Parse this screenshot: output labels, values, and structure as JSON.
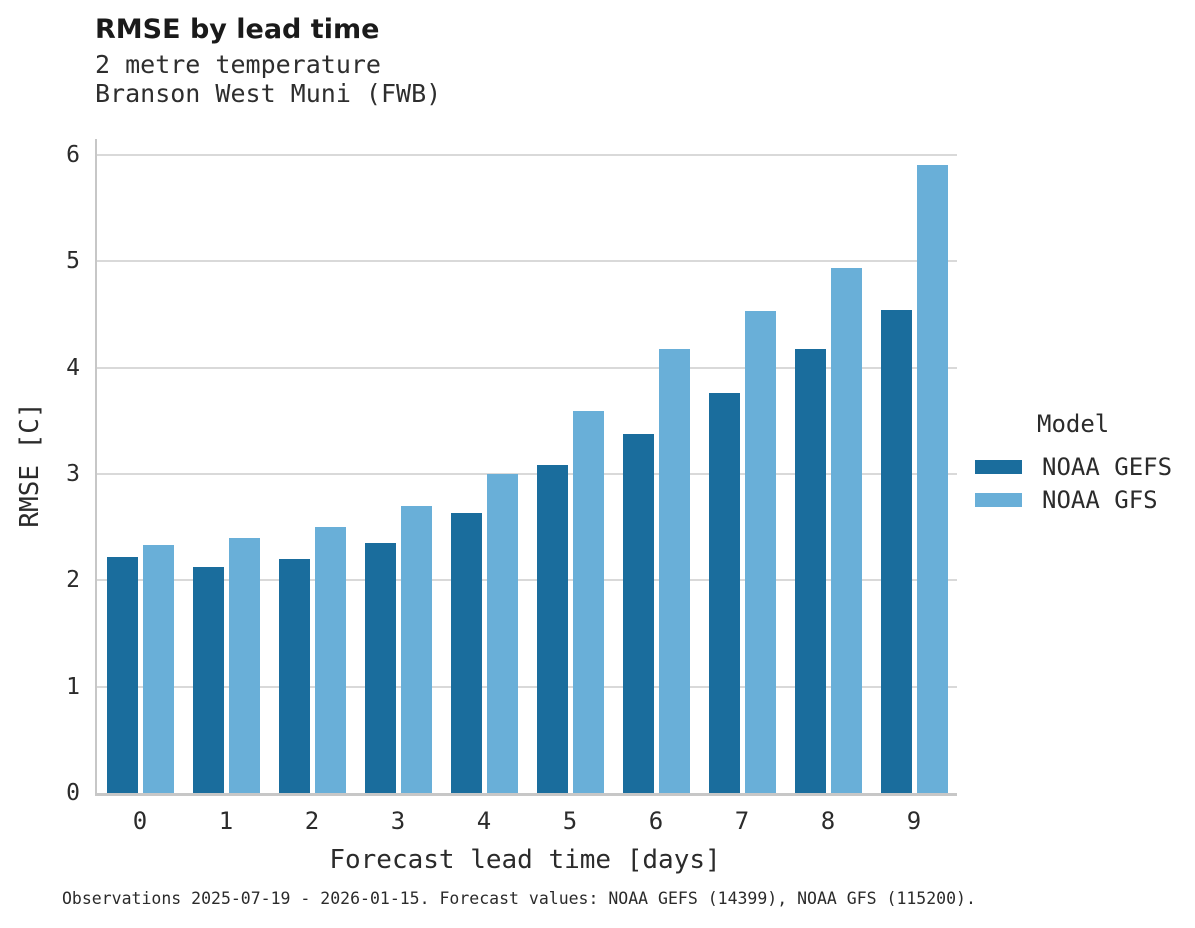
{
  "title": "RMSE by lead time",
  "subtitle_lines": [
    "2 metre temperature",
    "Branson West Muni (FWB)"
  ],
  "footer": "Observations 2025-07-19 - 2026-01-15. Forecast values: NOAA GEFS (14399), NOAA GFS (115200).",
  "colors": {
    "gefs_dark_blue": "#1a6d9d",
    "gfs_light_blue": "#69afd8",
    "gridline_gray": "#d9d9d9",
    "spine_gray": "#c7c7c7",
    "text_dark": "#2b2b2b"
  },
  "legend": {
    "title": "Model",
    "entries": [
      {
        "label": "NOAA GEFS",
        "color": "#1a6d9d"
      },
      {
        "label": "NOAA GFS",
        "color": "#69afd8"
      }
    ]
  },
  "chart_data": {
    "type": "bar",
    "title": "RMSE by lead time",
    "subtitle": "2 metre temperature / Branson West Muni (FWB)",
    "categories": [
      "0",
      "1",
      "2",
      "3",
      "4",
      "5",
      "6",
      "7",
      "8",
      "9"
    ],
    "series": [
      {
        "name": "NOAA GEFS",
        "color": "#1a6d9d",
        "values": [
          2.22,
          2.13,
          2.2,
          2.35,
          2.63,
          3.08,
          3.38,
          3.76,
          4.18,
          4.54
        ]
      },
      {
        "name": "NOAA GFS",
        "color": "#69afd8",
        "values": [
          2.33,
          2.4,
          2.5,
          2.7,
          3.0,
          3.59,
          4.18,
          4.53,
          4.94,
          5.91
        ]
      }
    ],
    "xlabel": "Forecast lead time [days]",
    "ylabel": "RMSE [C]",
    "ylim": [
      0,
      6.15
    ],
    "yticks": [
      0,
      1,
      2,
      3,
      4,
      5,
      6
    ],
    "grid": "horizontal",
    "legend_position": "right-center"
  }
}
